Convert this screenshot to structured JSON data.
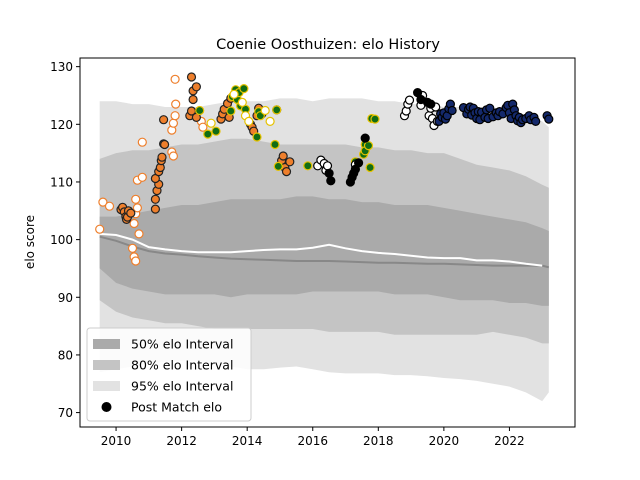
{
  "chart_data": {
    "type": "scatter",
    "title": "Coenie Oosthuizen: elo History",
    "xlabel": "",
    "ylabel": "elo score",
    "xlim": [
      2008.9,
      2024.0
    ],
    "ylim": [
      67.5,
      131.5
    ],
    "xticks": [
      2010,
      2012,
      2014,
      2016,
      2018,
      2020,
      2022
    ],
    "yticks": [
      70,
      80,
      90,
      100,
      110,
      120,
      130
    ],
    "grid": false,
    "legend_position": "lower-left",
    "legend": [
      {
        "label": "50% elo Interval",
        "kind": "band",
        "color": "#aaaaaa"
      },
      {
        "label": "80% elo Interval",
        "kind": "band",
        "color": "#c4c4c4"
      },
      {
        "label": "95% elo Interval",
        "kind": "band",
        "color": "#e2e2e2"
      },
      {
        "label": "Post Match elo",
        "kind": "marker",
        "color": "#000000"
      }
    ],
    "bands": {
      "x": [
        2009.5,
        2010,
        2010.5,
        2011,
        2011.5,
        2012,
        2012.5,
        2013,
        2013.5,
        2014,
        2014.5,
        2015,
        2015.5,
        2016,
        2016.5,
        2017,
        2017.5,
        2018,
        2018.5,
        2019,
        2019.5,
        2020,
        2020.5,
        2021,
        2021.5,
        2022,
        2022.5,
        2023,
        2023.2
      ],
      "p95_low": [
        77,
        77.5,
        78,
        78.5,
        78.8,
        79,
        79,
        78.5,
        78,
        77.5,
        77.5,
        77.8,
        78,
        77.5,
        77,
        76.8,
        76.8,
        76.8,
        76.5,
        76.5,
        76.3,
        76,
        75.8,
        75.5,
        75,
        74.5,
        73.5,
        72,
        73.5
      ],
      "p95_high": [
        124,
        124,
        123.5,
        123.5,
        123,
        123,
        123,
        123.5,
        124,
        124,
        124,
        124.5,
        124.5,
        124,
        124.5,
        124.5,
        124.5,
        124,
        124,
        123.5,
        123.5,
        123,
        123,
        122.5,
        122.5,
        122,
        121.5,
        120.5,
        119.5
      ],
      "p80_low": [
        89.5,
        87.5,
        86.5,
        86,
        85.5,
        85.5,
        85,
        84.5,
        84.5,
        84.5,
        84.5,
        84.5,
        84.5,
        84.5,
        84,
        84,
        84,
        84,
        83.5,
        83.5,
        83.5,
        83.5,
        83.5,
        83.5,
        84,
        83.5,
        83,
        82,
        82
      ],
      "p80_high": [
        114,
        115,
        115.5,
        115.5,
        116,
        116.5,
        116.5,
        117,
        117.5,
        117.5,
        117,
        116.5,
        116.5,
        116.5,
        116.5,
        116.5,
        116,
        116,
        115.5,
        115.5,
        115,
        115,
        114,
        113,
        112.5,
        112,
        111,
        109.5,
        109
      ],
      "p50_low": [
        95,
        92.5,
        91.5,
        91,
        90.5,
        90.5,
        90.5,
        90.5,
        90,
        90.5,
        90.5,
        90.5,
        90.5,
        91,
        91,
        91,
        91,
        91,
        90.5,
        90.5,
        90.5,
        90,
        89.5,
        89.5,
        89.5,
        89,
        89,
        88.5,
        88.5
      ],
      "p50_high": [
        104,
        104,
        104.5,
        105,
        105.5,
        106,
        106,
        106.5,
        107,
        107,
        107,
        107,
        107.5,
        107.5,
        107,
        107,
        106.5,
        106.5,
        106,
        106,
        106,
        105.5,
        105,
        104.5,
        104,
        103.5,
        103,
        102,
        101.5
      ]
    },
    "median_line": {
      "color": "#888888",
      "x": [
        2009.5,
        2010,
        2010.5,
        2011,
        2011.5,
        2012,
        2012.5,
        2013,
        2013.5,
        2014,
        2014.5,
        2015,
        2015.5,
        2016,
        2016.5,
        2017,
        2017.5,
        2018,
        2018.5,
        2019,
        2019.5,
        2020,
        2020.5,
        2021,
        2021.5,
        2022,
        2022.5,
        2023,
        2023.2
      ],
      "y": [
        100.5,
        99.8,
        98.8,
        98,
        97.6,
        97.4,
        97.1,
        96.9,
        96.7,
        96.6,
        96.5,
        96.4,
        96.3,
        96.3,
        96.3,
        96.2,
        96.1,
        96.0,
        96.0,
        95.9,
        95.8,
        95.8,
        95.7,
        95.6,
        95.5,
        95.5,
        95.5,
        95.5,
        95.2
      ]
    },
    "white_line": {
      "color": "#ffffff",
      "x": [
        2009.5,
        2010,
        2010.5,
        2011,
        2011.5,
        2012,
        2012.5,
        2013,
        2013.5,
        2014,
        2014.5,
        2015,
        2015.5,
        2016,
        2016.5,
        2017,
        2017.5,
        2018,
        2018.5,
        2019,
        2019.5,
        2020,
        2020.5,
        2021,
        2021.5,
        2022,
        2022.5,
        2023
      ],
      "y": [
        101,
        100.8,
        100,
        98.7,
        98.3,
        98.0,
        97.8,
        97.8,
        97.8,
        98.0,
        98.2,
        98.3,
        98.3,
        98.6,
        99.1,
        98.5,
        98.0,
        97.7,
        97.5,
        97.2,
        96.9,
        96.8,
        96.8,
        96.4,
        96.4,
        96.2,
        95.8,
        95.5
      ]
    },
    "series": [
      {
        "fill": "#ffffff",
        "edge": "#ee7f2c",
        "points": [
          [
            2009.5,
            101.8
          ],
          [
            2009.6,
            106.5
          ],
          [
            2009.8,
            105.8
          ],
          [
            2010.5,
            98.5
          ],
          [
            2010.55,
            97.0
          ],
          [
            2010.6,
            96.3
          ],
          [
            2010.55,
            102.8
          ],
          [
            2010.6,
            104.5
          ],
          [
            2010.65,
            105.5
          ],
          [
            2010.6,
            107.0
          ],
          [
            2010.7,
            101.0
          ],
          [
            2010.65,
            110.3
          ],
          [
            2010.8,
            110.8
          ],
          [
            2010.8,
            116.9
          ],
          [
            2011.7,
            115.2
          ],
          [
            2011.75,
            114.5
          ],
          [
            2011.7,
            119.0
          ],
          [
            2011.75,
            120.2
          ],
          [
            2011.8,
            121.5
          ],
          [
            2011.82,
            123.5
          ],
          [
            2011.8,
            127.8
          ],
          [
            2012.6,
            120.5
          ],
          [
            2012.65,
            119.5
          ]
        ]
      },
      {
        "fill": "#ee7f2c",
        "edge": "#222222",
        "points": [
          [
            2010.15,
            105.2
          ],
          [
            2010.2,
            105.6
          ],
          [
            2010.25,
            104.8
          ],
          [
            2010.3,
            104.0
          ],
          [
            2010.32,
            103.5
          ],
          [
            2010.35,
            103.9
          ],
          [
            2010.38,
            105.0
          ],
          [
            2010.45,
            104.6
          ],
          [
            2011.2,
            105.3
          ],
          [
            2011.2,
            107.0
          ],
          [
            2011.25,
            108.5
          ],
          [
            2011.3,
            109.6
          ],
          [
            2011.2,
            110.6
          ],
          [
            2011.3,
            111.8
          ],
          [
            2011.35,
            112.5
          ],
          [
            2011.38,
            113.7
          ],
          [
            2011.4,
            114.3
          ],
          [
            2011.45,
            116.6
          ],
          [
            2011.48,
            116.5
          ],
          [
            2011.45,
            120.8
          ],
          [
            2012.25,
            121.5
          ],
          [
            2012.3,
            122.3
          ],
          [
            2012.35,
            124.3
          ],
          [
            2012.35,
            125.8
          ],
          [
            2012.45,
            126.5
          ],
          [
            2012.3,
            128.2
          ],
          [
            2012.45,
            121.2
          ],
          [
            2013.2,
            120.9
          ],
          [
            2013.25,
            121.8
          ],
          [
            2013.3,
            122.6
          ],
          [
            2013.4,
            123.6
          ],
          [
            2013.45,
            121.2
          ],
          [
            2013.5,
            124.5
          ],
          [
            2014.1,
            120.0
          ],
          [
            2014.15,
            119.5
          ],
          [
            2014.2,
            118.8
          ],
          [
            2014.3,
            121.5
          ],
          [
            2014.35,
            122.8
          ],
          [
            2014.45,
            121.8
          ],
          [
            2014.9,
            122.5
          ],
          [
            2015.05,
            113.7
          ],
          [
            2015.1,
            114.5
          ],
          [
            2015.15,
            112.5
          ],
          [
            2015.2,
            111.8
          ],
          [
            2015.3,
            113.5
          ]
        ]
      },
      {
        "fill": "#116d15",
        "edge": "#e6c200",
        "points": [
          [
            2012.55,
            122.4
          ],
          [
            2012.8,
            118.3
          ],
          [
            2013.05,
            118.8
          ],
          [
            2013.5,
            122.3
          ],
          [
            2013.55,
            124.8
          ],
          [
            2013.65,
            126.0
          ],
          [
            2013.7,
            124.3
          ],
          [
            2013.75,
            125.5
          ],
          [
            2013.8,
            123.2
          ],
          [
            2013.9,
            126.2
          ],
          [
            2013.95,
            122.6
          ],
          [
            2014.3,
            117.8
          ],
          [
            2014.35,
            122.2
          ],
          [
            2014.4,
            121.5
          ],
          [
            2014.85,
            116.5
          ],
          [
            2014.9,
            122.5
          ],
          [
            2014.95,
            112.7
          ],
          [
            2015.85,
            112.8
          ],
          [
            2016.25,
            113.3
          ],
          [
            2017.3,
            113.5
          ],
          [
            2017.55,
            114.8
          ],
          [
            2017.6,
            116.5
          ],
          [
            2017.6,
            115.4
          ],
          [
            2017.7,
            116.3
          ],
          [
            2017.75,
            112.5
          ],
          [
            2017.8,
            121.0
          ],
          [
            2017.9,
            120.9
          ]
        ]
      },
      {
        "fill": "#ffffff",
        "edge": "#e6c200",
        "points": [
          [
            2012.9,
            120.2
          ],
          [
            2013.6,
            125.2
          ],
          [
            2013.85,
            123.8
          ],
          [
            2013.95,
            121.5
          ],
          [
            2014.05,
            120.5
          ],
          [
            2014.55,
            122.4
          ],
          [
            2014.7,
            120.5
          ]
        ]
      },
      {
        "fill": "#ffffff",
        "edge": "#000000",
        "points": [
          [
            2016.15,
            112.8
          ],
          [
            2016.25,
            113.8
          ],
          [
            2016.35,
            113.2
          ],
          [
            2016.4,
            112.0
          ],
          [
            2016.45,
            112.8
          ],
          [
            2017.3,
            113.0
          ],
          [
            2018.8,
            121.5
          ],
          [
            2018.85,
            122.3
          ],
          [
            2018.9,
            123.5
          ],
          [
            2018.95,
            124.2
          ],
          [
            2019.3,
            123.3
          ],
          [
            2019.35,
            125.0
          ],
          [
            2019.55,
            121.5
          ],
          [
            2019.6,
            122.8
          ],
          [
            2019.65,
            121.0
          ],
          [
            2019.7,
            119.8
          ],
          [
            2019.8,
            120.5
          ],
          [
            2019.75,
            123.0
          ]
        ]
      },
      {
        "fill": "#000000",
        "edge": "#000000",
        "points": [
          [
            2016.5,
            111.5
          ],
          [
            2016.55,
            110.2
          ],
          [
            2017.15,
            110.0
          ],
          [
            2017.2,
            110.8
          ],
          [
            2017.25,
            111.5
          ],
          [
            2017.3,
            112.2
          ],
          [
            2017.4,
            113.3
          ],
          [
            2017.6,
            117.6
          ],
          [
            2019.2,
            125.5
          ],
          [
            2019.3,
            124.3
          ],
          [
            2019.5,
            123.8
          ],
          [
            2019.6,
            123.5
          ]
        ]
      },
      {
        "fill": "#14296b",
        "edge": "#000000",
        "points": [
          [
            2019.85,
            120.5
          ],
          [
            2019.9,
            121.8
          ],
          [
            2019.95,
            121.2
          ],
          [
            2020.0,
            122.0
          ],
          [
            2020.05,
            120.9
          ],
          [
            2020.1,
            121.5
          ],
          [
            2020.15,
            122.7
          ],
          [
            2020.2,
            123.5
          ],
          [
            2020.25,
            122.4
          ],
          [
            2020.6,
            122.9
          ],
          [
            2020.7,
            121.8
          ],
          [
            2020.75,
            122.6
          ],
          [
            2020.8,
            123.0
          ],
          [
            2020.85,
            121.6
          ],
          [
            2020.9,
            122.8
          ],
          [
            2020.95,
            122.0
          ],
          [
            2021.0,
            121.0
          ],
          [
            2021.05,
            122.2
          ],
          [
            2021.1,
            120.8
          ],
          [
            2021.15,
            122.1
          ],
          [
            2021.25,
            121.2
          ],
          [
            2021.3,
            122.5
          ],
          [
            2021.35,
            121.0
          ],
          [
            2021.4,
            122.8
          ],
          [
            2021.5,
            121.3
          ],
          [
            2021.6,
            122.0
          ],
          [
            2021.65,
            121.5
          ],
          [
            2021.7,
            122.2
          ],
          [
            2021.8,
            121.8
          ],
          [
            2021.9,
            122.9
          ],
          [
            2021.95,
            123.3
          ],
          [
            2022.0,
            122.0
          ],
          [
            2022.05,
            121.0
          ],
          [
            2022.1,
            123.5
          ],
          [
            2022.15,
            122.5
          ],
          [
            2022.2,
            121.5
          ],
          [
            2022.25,
            120.6
          ],
          [
            2022.3,
            121.2
          ],
          [
            2022.35,
            120.3
          ],
          [
            2022.4,
            120.8
          ],
          [
            2022.5,
            121.0
          ],
          [
            2022.6,
            121.5
          ],
          [
            2022.65,
            120.8
          ],
          [
            2022.75,
            121.2
          ],
          [
            2022.8,
            120.5
          ],
          [
            2023.15,
            121.5
          ],
          [
            2023.2,
            120.9
          ]
        ]
      }
    ]
  }
}
